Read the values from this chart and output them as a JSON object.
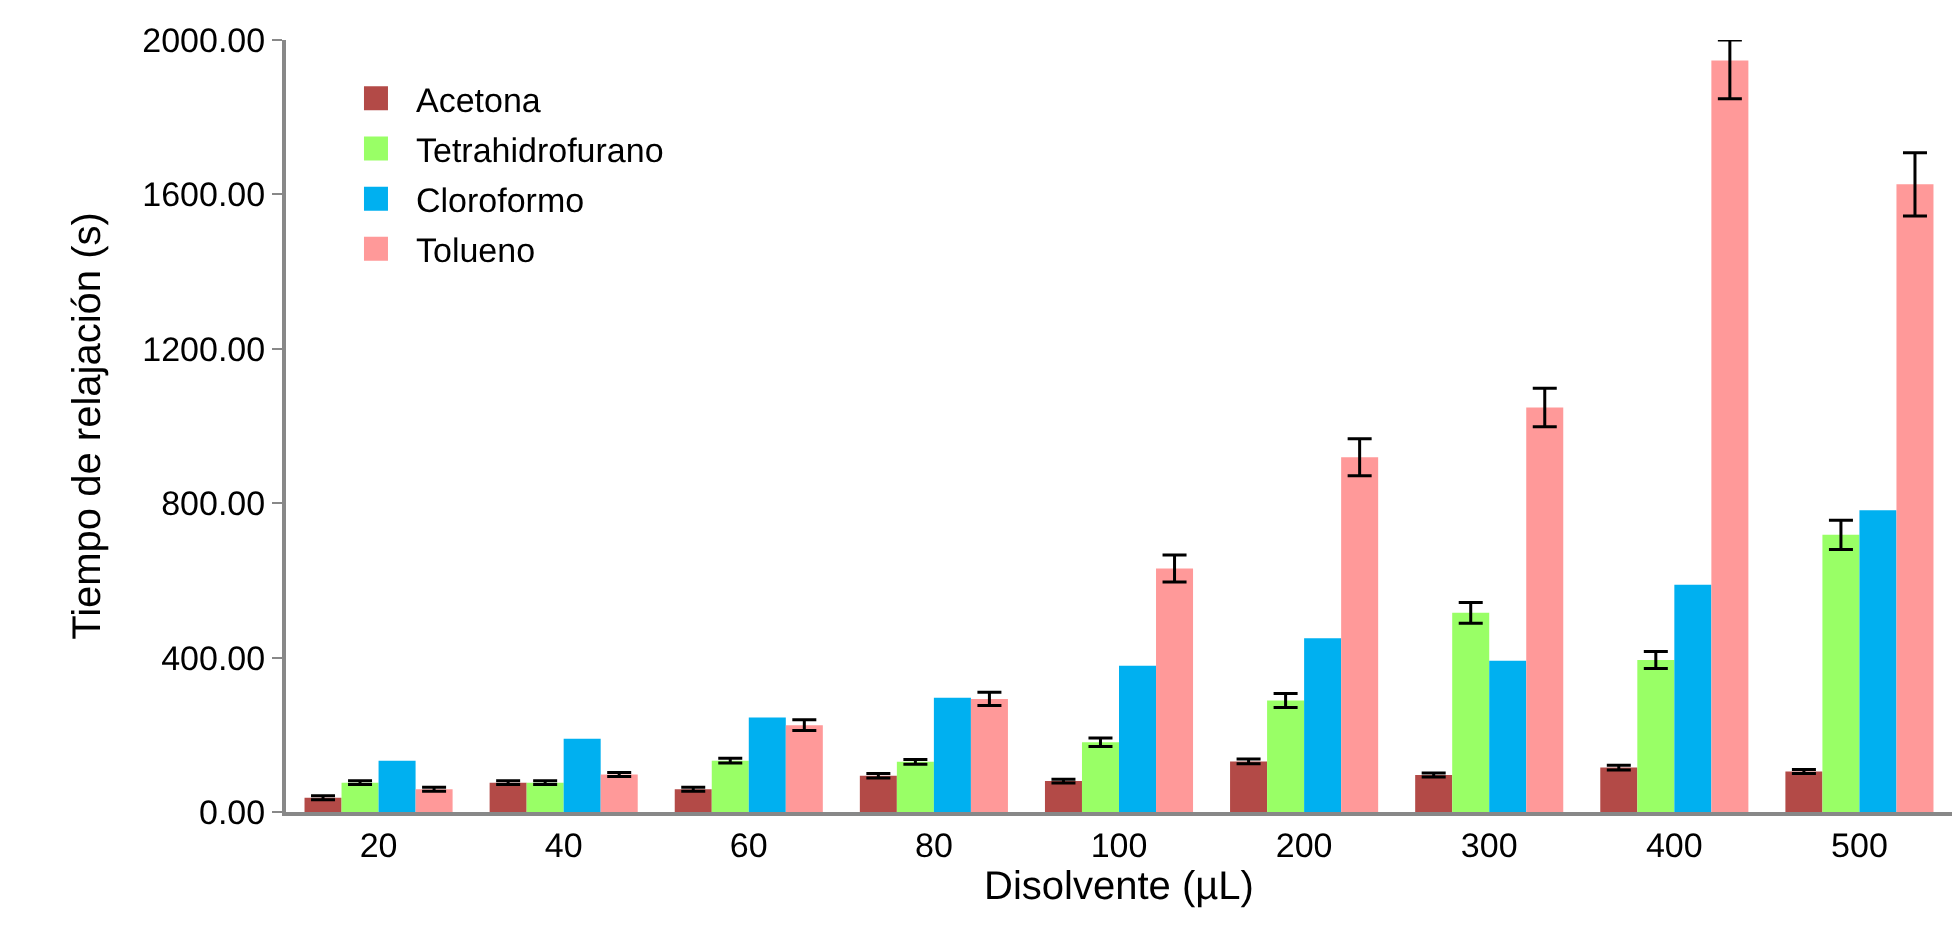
{
  "chart_data": {
    "type": "bar",
    "xlabel": "Disolvente (µL)",
    "ylabel": "Tiempo de relajación (s)",
    "categories": [
      "20",
      "40",
      "60",
      "80",
      "100",
      "200",
      "300",
      "400",
      "500"
    ],
    "series": [
      {
        "name": "Acetona",
        "color": "#b34a47",
        "values": [
          37,
          76,
          59,
          94,
          80,
          131,
          96,
          115,
          105
        ],
        "errors": [
          5,
          5,
          5,
          6,
          5,
          6,
          5,
          6,
          5
        ]
      },
      {
        "name": "Tetrahidrofurano",
        "color": "#99ff66",
        "values": [
          76,
          76,
          133,
          130,
          181,
          289,
          516,
          394,
          718
        ],
        "errors": [
          5,
          5,
          6,
          6,
          11,
          18,
          27,
          22,
          38
        ]
      },
      {
        "name": "Cloroformo",
        "color": "#00b0f0",
        "values": [
          133,
          190,
          245,
          296,
          379,
          450,
          392,
          589,
          782
        ]
      },
      {
        "name": "Tolueno",
        "color": "#ff9999",
        "values": [
          59,
          97,
          225,
          293,
          631,
          919,
          1048,
          1947,
          1626
        ],
        "errors": [
          5,
          5,
          14,
          17,
          35,
          48,
          50,
          [
            1848,
            2000
          ],
          82
        ]
      }
    ],
    "ylim": [
      0,
      2000
    ],
    "yticks": [
      {
        "value": 0,
        "label": "0.00"
      },
      {
        "value": 400,
        "label": "400.00"
      },
      {
        "value": 800,
        "label": "800.00"
      },
      {
        "value": 1200,
        "label": "1200.00"
      },
      {
        "value": 1600,
        "label": "1600.00"
      },
      {
        "value": 2000,
        "label": "2000.00"
      }
    ],
    "legend": "top left"
  }
}
